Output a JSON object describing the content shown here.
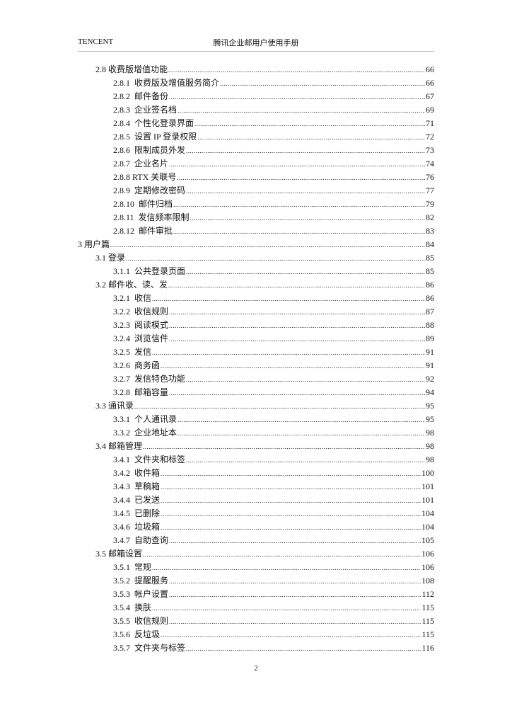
{
  "header": {
    "left": "TENCENT",
    "title": "腾讯企业邮用户使用手册"
  },
  "toc": [
    {
      "level": 2,
      "label": "2.8 收费版增值功能",
      "page": "66"
    },
    {
      "level": 3,
      "label": "2.8.1  收费版及增值服务简介",
      "page": "66"
    },
    {
      "level": 3,
      "label": "2.8.2  邮件备份",
      "page": "67"
    },
    {
      "level": 3,
      "label": "2.8.3  企业签名档",
      "page": "69"
    },
    {
      "level": 3,
      "label": "2.8.4  个性化登录界面",
      "page": "71"
    },
    {
      "level": 3,
      "label": "2.8.5  设置 IP 登录权限",
      "page": "72"
    },
    {
      "level": 3,
      "label": "2.8.6  限制成员外发",
      "page": "73"
    },
    {
      "level": 3,
      "label": "2.8.7  企业名片",
      "page": "74"
    },
    {
      "level": 3,
      "label": "2.8.8 RTX 关联号",
      "page": "76"
    },
    {
      "level": 3,
      "label": "2.8.9  定期修改密码",
      "page": "77"
    },
    {
      "level": 3,
      "label": "2.8.10  邮件归档",
      "page": "79"
    },
    {
      "level": 3,
      "label": "2.8.11  发信频率限制",
      "page": "82"
    },
    {
      "level": 3,
      "label": "2.8.12  邮件审批",
      "page": "83"
    },
    {
      "level": 1,
      "label": "3 用户篇",
      "page": "84"
    },
    {
      "level": 2,
      "label": "3.1 登录",
      "page": "85"
    },
    {
      "level": 3,
      "label": "3.1.1  公共登录页面",
      "page": "85"
    },
    {
      "level": 2,
      "label": "3.2 邮件收、读、发",
      "page": "86"
    },
    {
      "level": 3,
      "label": "3.2.1  收信",
      "page": "86"
    },
    {
      "level": 3,
      "label": "3.2.2  收信规则",
      "page": "87"
    },
    {
      "level": 3,
      "label": "3.2.3  阅读模式",
      "page": "88"
    },
    {
      "level": 3,
      "label": "3.2.4  浏览信件",
      "page": "89"
    },
    {
      "level": 3,
      "label": "3.2.5  发信",
      "page": "91"
    },
    {
      "level": 3,
      "label": "3.2.6  商务函",
      "page": "91"
    },
    {
      "level": 3,
      "label": "3.2.7  发信特色功能",
      "page": "92"
    },
    {
      "level": 3,
      "label": "3.2.8  邮箱容量",
      "page": "94"
    },
    {
      "level": 2,
      "label": "3.3 通讯录",
      "page": "95"
    },
    {
      "level": 3,
      "label": "3.3.1  个人通讯录",
      "page": "95"
    },
    {
      "level": 3,
      "label": "3.3.2  企业地址本",
      "page": "98"
    },
    {
      "level": 2,
      "label": "3.4 邮箱管理",
      "page": "98"
    },
    {
      "level": 3,
      "label": "3.4.1  文件夹和标签",
      "page": "98"
    },
    {
      "level": 3,
      "label": "3.4.2  收件箱",
      "page": "100"
    },
    {
      "level": 3,
      "label": "3.4.3  草稿箱",
      "page": "101"
    },
    {
      "level": 3,
      "label": "3.4.4  已发送",
      "page": "101"
    },
    {
      "level": 3,
      "label": "3.4.5  已删除",
      "page": "104"
    },
    {
      "level": 3,
      "label": "3.4.6  垃圾箱",
      "page": "104"
    },
    {
      "level": 3,
      "label": "3.4.7  自助查询",
      "page": "105"
    },
    {
      "level": 2,
      "label": "3.5 邮箱设置",
      "page": "106"
    },
    {
      "level": 3,
      "label": "3.5.1  常规",
      "page": "106"
    },
    {
      "level": 3,
      "label": "3.5.2  提醒服务",
      "page": "108"
    },
    {
      "level": 3,
      "label": "3.5.3  帐户设置",
      "page": "112"
    },
    {
      "level": 3,
      "label": "3.5.4  换肤",
      "page": "115"
    },
    {
      "level": 3,
      "label": "3.5.5  收信规则",
      "page": "115"
    },
    {
      "level": 3,
      "label": "3.5.6  反垃圾",
      "page": "115"
    },
    {
      "level": 3,
      "label": "3.5.7  文件夹与标签",
      "page": "116"
    }
  ],
  "footer": {
    "page_number": "2"
  }
}
